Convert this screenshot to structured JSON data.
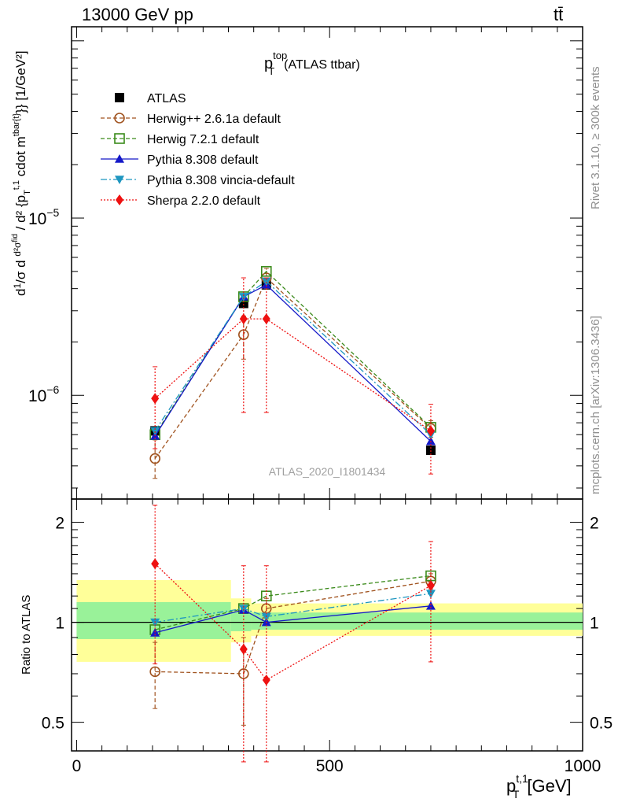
{
  "header": {
    "left": "13000 GeV pp",
    "right": "tt̄"
  },
  "side_labels": {
    "rivet": "Rivet 3.1.10, ≥ 300k events",
    "mcplots": "mcplots.cern.ch [arXiv:1306.3436]"
  },
  "chart_data": [
    {
      "type": "line",
      "title": "p_T^top (ATLAS ttbar)",
      "title_main": "p",
      "title_sup": "top",
      "title_sub": "T",
      "title_rest": "(ATLAS ttbar)",
      "watermark": "ATLAS_2020_I1801434",
      "ylabel": "d¹/σ d d²σ^fid / d² {p_T^t,1 cdot m^tbar{t}} [1/GeV²]",
      "yscale": "log",
      "ylim": [
        2.6e-07,
        0.00012
      ],
      "xlim": [
        -10,
        1000
      ],
      "y_ticks": [
        {
          "value": 1e-06,
          "label": "10",
          "exp": "−6"
        },
        {
          "value": 1e-05,
          "label": "10",
          "exp": "−5"
        }
      ],
      "series": [
        {
          "name": "ATLAS",
          "color": "#000000",
          "marker": "square-filled",
          "dash": "none",
          "x": [
            155,
            330,
            375,
            700
          ],
          "y": [
            6.3e-07,
            3.3e-06,
            4.2e-06,
            4.9e-07
          ]
        },
        {
          "name": "Herwig++ 2.6.1a default",
          "color": "#a0521e",
          "marker": "circle-open",
          "dash": "5,3",
          "x": [
            155,
            330,
            375,
            700
          ],
          "y": [
            4.4e-07,
            2.2e-06,
            4.6e-06,
            6.5e-07
          ],
          "err_lo": [
            3.4e-07,
            1.6e-06,
            4e-06,
            5.8e-07
          ],
          "err_hi": [
            5.6e-07,
            2.8e-06,
            5.2e-06,
            7.2e-07
          ]
        },
        {
          "name": "Herwig 7.2.1 default",
          "color": "#3a8a1a",
          "marker": "square-open",
          "dash": "5,3",
          "x": [
            155,
            330,
            375,
            700
          ],
          "y": [
            6e-07,
            3.6e-06,
            5e-06,
            6.6e-07
          ]
        },
        {
          "name": "Pythia 8.308 default",
          "color": "#1418c8",
          "marker": "triangle-up",
          "dash": "none",
          "x": [
            155,
            330,
            375,
            700
          ],
          "y": [
            5.9e-07,
            3.6e-06,
            4.2e-06,
            5.5e-07
          ]
        },
        {
          "name": "Pythia 8.308 vincia-default",
          "color": "#1e96c0",
          "marker": "triangle-down",
          "dash": "8,3,2,3",
          "x": [
            155,
            330,
            375,
            700
          ],
          "y": [
            6.3e-07,
            3.6e-06,
            4.4e-06,
            6e-07
          ]
        },
        {
          "name": "Sherpa 2.2.0 default",
          "color": "#ee1111",
          "marker": "diamond",
          "dash": "2,2",
          "x": [
            155,
            330,
            375,
            700
          ],
          "y": [
            9.6e-07,
            2.7e-06,
            2.7e-06,
            6.3e-07
          ],
          "err_lo": [
            5e-07,
            8e-07,
            8e-07,
            3.6e-07
          ],
          "err_hi": [
            1.45e-06,
            4.6e-06,
            4.6e-06,
            8.9e-07
          ]
        }
      ]
    },
    {
      "type": "line",
      "title": "Ratio to ATLAS",
      "ylabel": "Ratio to ATLAS",
      "xlabel": "p_T^t,1 [GeV]",
      "xlabel_main": "p",
      "xlabel_sup": "t,1",
      "xlabel_sub": "T",
      "xlabel_rest": "[GeV]",
      "yscale": "log",
      "ylim": [
        0.41,
        2.35
      ],
      "xlim": [
        -10,
        1000
      ],
      "x_ticks": [
        {
          "value": 0,
          "label": "0"
        },
        {
          "value": 500,
          "label": "500"
        },
        {
          "value": 1000,
          "label": "1000"
        }
      ],
      "y_ticks": [
        {
          "value": 0.5,
          "label": "0.5"
        },
        {
          "value": 1,
          "label": "1"
        },
        {
          "value": 2,
          "label": "2"
        }
      ],
      "bands": [
        {
          "x0": 0,
          "x1": 305,
          "stat_lo": 0.89,
          "stat_hi": 1.15,
          "tot_lo": 0.76,
          "tot_hi": 1.34
        },
        {
          "x0": 305,
          "x1": 345,
          "stat_lo": 0.94,
          "stat_hi": 1.08,
          "tot_lo": 0.87,
          "tot_hi": 1.18
        },
        {
          "x0": 345,
          "x1": 1000,
          "stat_lo": 0.95,
          "stat_hi": 1.07,
          "tot_lo": 0.91,
          "tot_hi": 1.14
        }
      ],
      "band_colors": {
        "stat": "#99f299",
        "total": "#ffff99"
      },
      "series": [
        {
          "name": "Herwig++ 2.6.1a default",
          "color": "#a0521e",
          "marker": "circle-open",
          "dash": "5,3",
          "x": [
            155,
            330,
            375,
            700
          ],
          "y": [
            0.71,
            0.7,
            1.1,
            1.33
          ],
          "err_lo": [
            0.55,
            0.49,
            1.03,
            1.26
          ],
          "err_hi": [
            0.87,
            0.9,
            1.18,
            1.4
          ]
        },
        {
          "name": "Herwig 7.2.1 default",
          "color": "#3a8a1a",
          "marker": "square-open",
          "dash": "5,3",
          "x": [
            155,
            330,
            375,
            700
          ],
          "y": [
            0.95,
            1.1,
            1.2,
            1.38
          ]
        },
        {
          "name": "Pythia 8.308 default",
          "color": "#1418c8",
          "marker": "triangle-up",
          "dash": "none",
          "x": [
            155,
            330,
            375,
            700
          ],
          "y": [
            0.93,
            1.09,
            1.0,
            1.12
          ]
        },
        {
          "name": "Pythia 8.308 vincia-default",
          "color": "#1e96c0",
          "marker": "triangle-down",
          "dash": "8,3,2,3",
          "x": [
            155,
            330,
            375,
            700
          ],
          "y": [
            1.0,
            1.1,
            1.04,
            1.22
          ]
        },
        {
          "name": "Sherpa 2.2.0 default",
          "color": "#ee1111",
          "marker": "diamond",
          "dash": "2,2",
          "x": [
            155,
            330,
            375,
            700
          ],
          "y": [
            1.5,
            0.83,
            0.67,
            1.29
          ],
          "err_lo": [
            0.75,
            0.38,
            0.38,
            0.76
          ],
          "err_hi": [
            2.25,
            1.48,
            1.48,
            1.75
          ]
        }
      ]
    }
  ]
}
